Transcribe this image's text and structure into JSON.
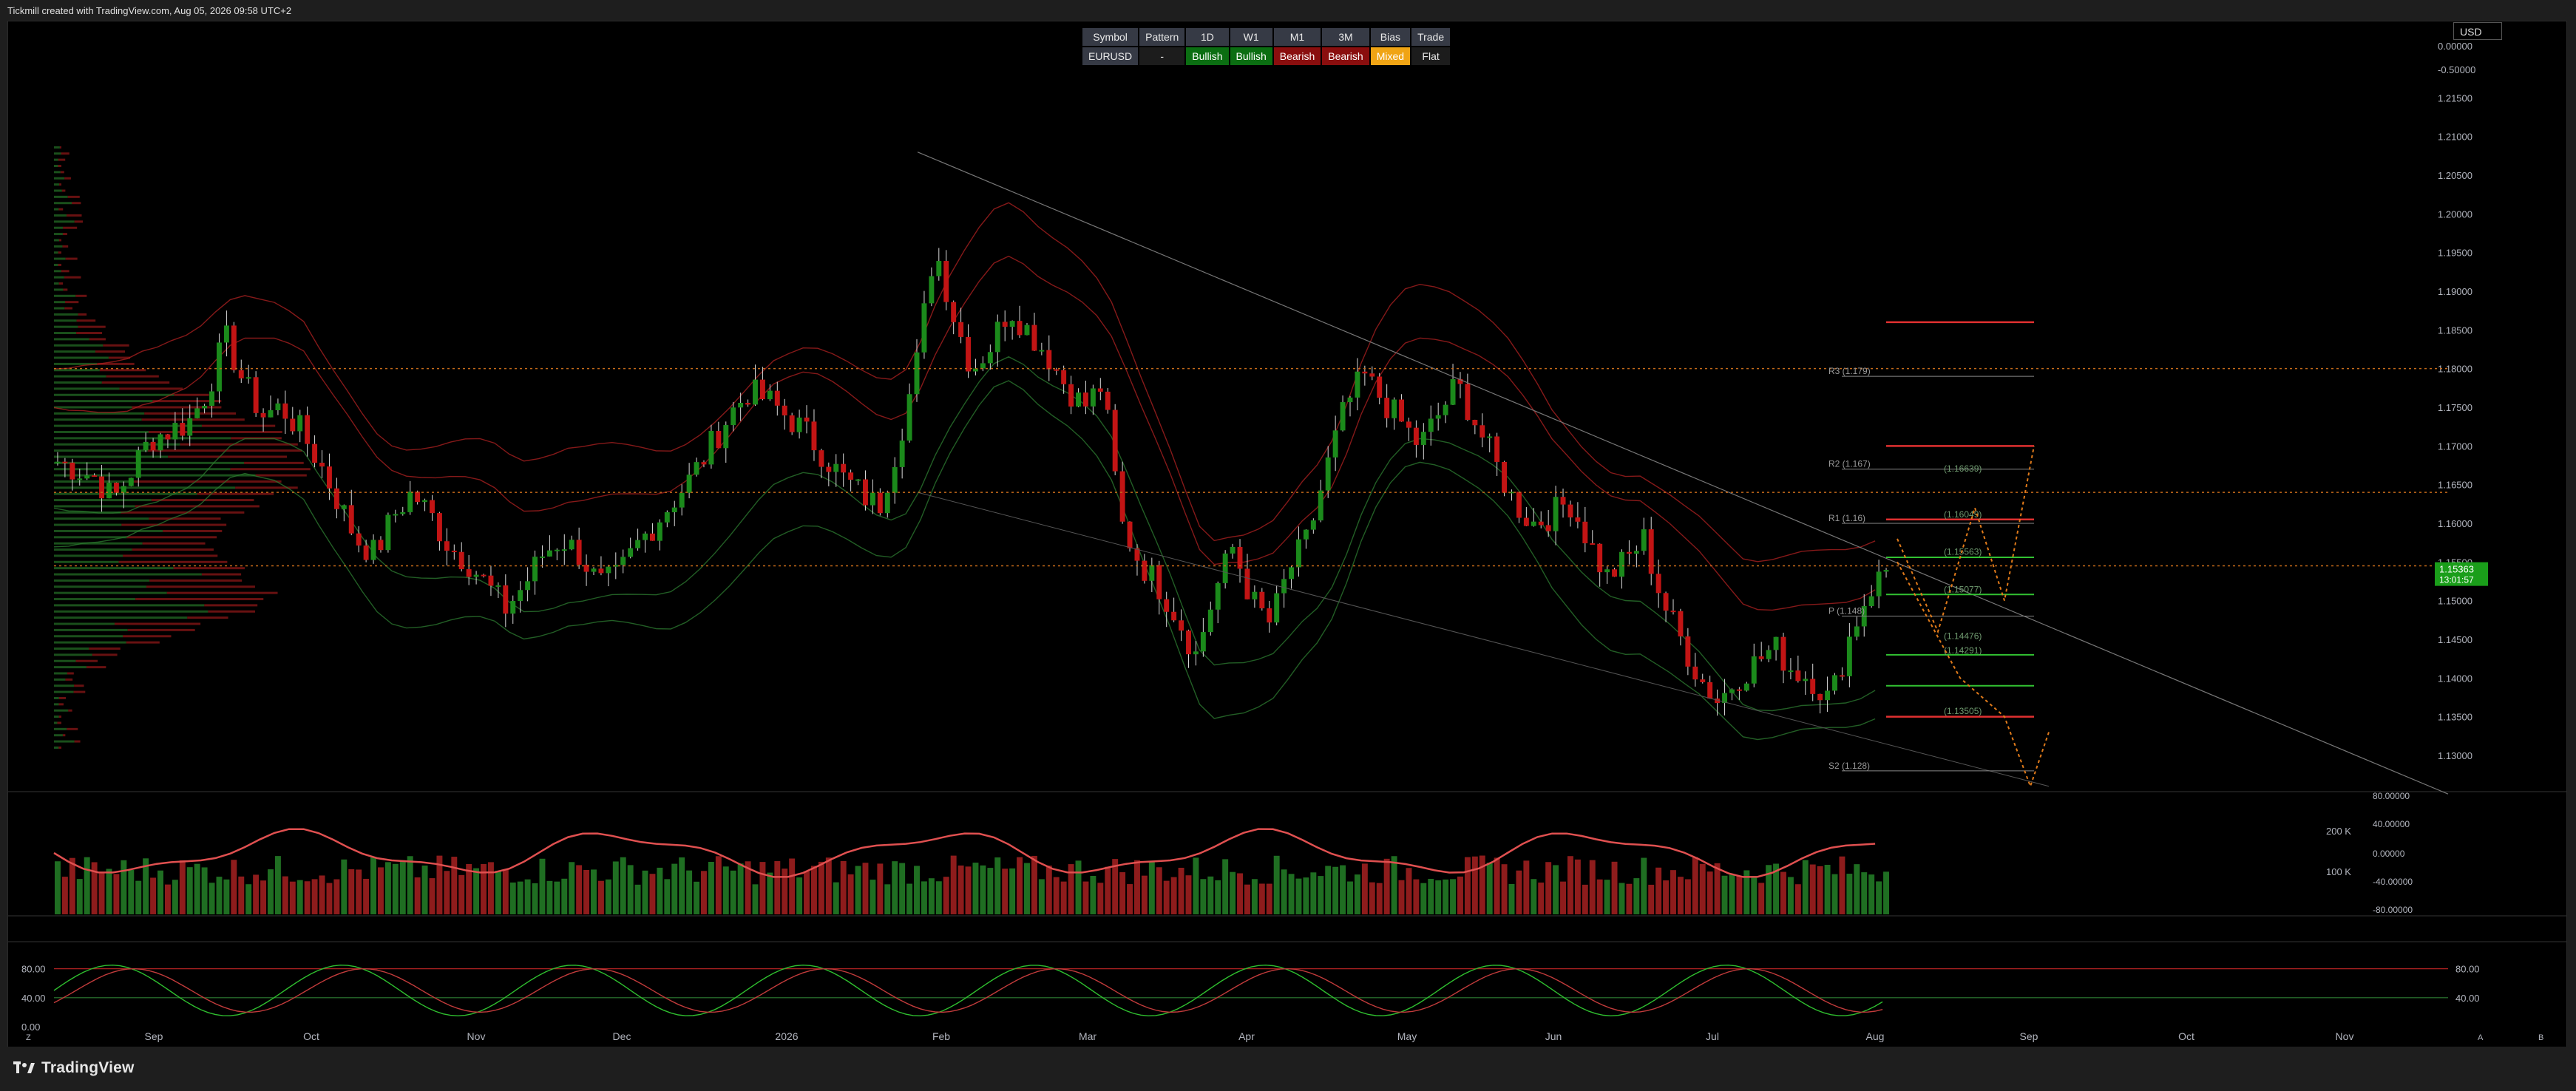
{
  "header": {
    "attribution": "Tickmill created with TradingView.com, Aug 05, 2026 09:58 UTC+2"
  },
  "footer": {
    "brand": "TradingView"
  },
  "currency": "USD",
  "bias_table": {
    "headers": [
      "Symbol",
      "Pattern",
      "1D",
      "W1",
      "M1",
      "3M",
      "Bias",
      "Trade"
    ],
    "values": [
      "EURUSD",
      "-",
      "Bullish",
      "Bullish",
      "Bearish",
      "Bearish",
      "Mixed",
      "Flat"
    ],
    "classes": [
      "",
      "dash",
      "bull",
      "bull",
      "bear",
      "bear",
      "mixed",
      "flat"
    ]
  },
  "colors": {
    "bull": "#1b8a1b",
    "bear": "#c21414",
    "band_red": "#b22222",
    "band_green": "#2e7d32",
    "level_line": "#e03030",
    "price_label": "#1a9e1a"
  },
  "chart_data": {
    "type": "candlestick",
    "x_ticks": [
      "Sep",
      "Oct",
      "Nov",
      "Dec",
      "2026",
      "Feb",
      "Mar",
      "Apr",
      "May",
      "Jun",
      "Jul",
      "Aug",
      "Sep",
      "Oct",
      "Nov"
    ],
    "y_ticks": [
      "0.00000",
      "-0.50000",
      "1.21500",
      "1.21000",
      "1.20500",
      "1.20000",
      "1.19500",
      "1.19000",
      "1.18500",
      "1.18000",
      "1.17500",
      "1.17000",
      "1.16500",
      "1.16000",
      "1.15500",
      "1.15000",
      "1.14500",
      "1.14000",
      "1.13500",
      "1.13000"
    ],
    "y_values": [
      1.215,
      1.21,
      1.205,
      1.2,
      1.195,
      1.19,
      1.185,
      1.18,
      1.175,
      1.17,
      1.165,
      1.16,
      1.155,
      1.15,
      1.145,
      1.14,
      1.135,
      1.13
    ],
    "ylim": [
      1.1255,
      1.218
    ],
    "last_price": "1.15363",
    "countdown": "13:01:57",
    "close_series": [
      1.168,
      1.167,
      1.166,
      1.163,
      1.167,
      1.171,
      1.172,
      1.173,
      1.177,
      1.184,
      1.178,
      1.174,
      1.175,
      1.172,
      1.168,
      1.163,
      1.158,
      1.156,
      1.161,
      1.164,
      1.161,
      1.157,
      1.155,
      1.152,
      1.149,
      1.152,
      1.156,
      1.158,
      1.156,
      1.152,
      1.153,
      1.157,
      1.16,
      1.163,
      1.166,
      1.17,
      1.174,
      1.177,
      1.176,
      1.174,
      1.172,
      1.169,
      1.166,
      1.164,
      1.162,
      1.17,
      1.18,
      1.196,
      1.187,
      1.18,
      1.183,
      1.188,
      1.185,
      1.182,
      1.178,
      1.175,
      1.178,
      1.16,
      1.155,
      1.152,
      1.148,
      1.143,
      1.151,
      1.157,
      1.15,
      1.147,
      1.154,
      1.158,
      1.167,
      1.175,
      1.179,
      1.176,
      1.173,
      1.17,
      1.174,
      1.178,
      1.173,
      1.168,
      1.163,
      1.16,
      1.161,
      1.163,
      1.158,
      1.153,
      1.155,
      1.158,
      1.15,
      1.145,
      1.14,
      1.137,
      1.14,
      1.142,
      1.144,
      1.141,
      1.14,
      1.137,
      1.145,
      1.151,
      1.154
    ],
    "pivots": [
      {
        "label": "R3 (1.179)",
        "value": 1.179
      },
      {
        "label": "R2 (1.167)",
        "value": 1.167
      },
      {
        "label": "(1.16639)",
        "value": 1.16639
      },
      {
        "label": "R1 (1.16)",
        "value": 1.16
      },
      {
        "label": "(1.16049)",
        "value": 1.16049
      },
      {
        "label": "(1.15563)",
        "value": 1.15563
      },
      {
        "label": "(1.15077)",
        "value": 1.15077
      },
      {
        "label": "P (1.148)",
        "value": 1.148
      },
      {
        "label": "(1.14476)",
        "value": 1.14476
      },
      {
        "label": "(1.14291)",
        "value": 1.14291
      },
      {
        "label": "(1.13505)",
        "value": 1.13505
      },
      {
        "label": "S2 (1.128)",
        "value": 1.128
      }
    ],
    "volume_ticks": [
      "200 K",
      "100 K"
    ],
    "oscillator_ticks": [
      "80.00000",
      "40.00000",
      "0.00000",
      "-40.00000",
      "-80.00000"
    ],
    "stoch_ticks": [
      "80.00",
      "40.00",
      "0.00"
    ],
    "stoch_right_ticks": [
      "80.00",
      "40.00"
    ],
    "corner_labels": [
      "Z",
      "A",
      "B"
    ]
  }
}
